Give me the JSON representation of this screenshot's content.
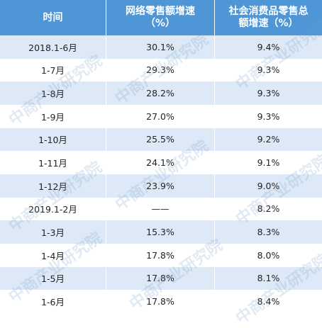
{
  "table": {
    "header": [
      [
        "时间"
      ],
      [
        "网络零售额增速",
        "（%）"
      ],
      [
        "社会消费品零售总",
        "额增速（%）"
      ]
    ],
    "rows": [
      [
        "2018.1-6月",
        "30.1%",
        "9.4%"
      ],
      [
        "1-7月",
        "29.3%",
        "9.3%"
      ],
      [
        "1-8月",
        "28.2%",
        "9.3%"
      ],
      [
        "1-9月",
        "27.0%",
        "9.3%"
      ],
      [
        "1-10月",
        "25.5%",
        "9.2%"
      ],
      [
        "1-11月",
        "24.1%",
        "9.1%"
      ],
      [
        "1-12月",
        "23.9%",
        "9.0%"
      ],
      [
        "2019.1-2月",
        "——",
        "8.2%"
      ],
      [
        "1-3月",
        "15.3%",
        "8.3%"
      ],
      [
        "1-4月",
        "17.8%",
        "8.0%"
      ],
      [
        "1-5月",
        "17.8%",
        "8.1%"
      ],
      [
        "1-6月",
        "17.8%",
        "8.4%"
      ]
    ]
  },
  "watermark": "中商产业研究院"
}
